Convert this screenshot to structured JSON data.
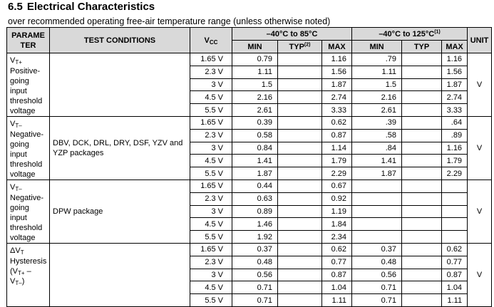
{
  "section": {
    "number": "6.5",
    "title": "Electrical Characteristics"
  },
  "subtitle": "over recommended operating free-air temperature range (unless otherwise noted)",
  "headers": {
    "parameter": "PARAMETER",
    "parameter_line1": "PARAME",
    "parameter_line2": "TER",
    "test_conditions": "TEST CONDITIONS",
    "vcc": "V",
    "vcc_sub": "CC",
    "range1": "–40°C to 85°C",
    "range2": "–40°C to 125°C",
    "range2_note": "(1)",
    "unit": "UNIT",
    "min": "MIN",
    "typ": "TYP",
    "typ_note": "(2)",
    "max": "MAX"
  },
  "groups": [
    {
      "symbol": "V",
      "symbol_sub": "T+",
      "description_lines": [
        "Positive-",
        "going",
        "input",
        "threshold",
        "voltage"
      ],
      "condition": "",
      "unit": "V",
      "rows": [
        {
          "vcc": "1.65 V",
          "min85": "0.79",
          "typ85": "",
          "max85": "1.16",
          "min125": ".79",
          "typ125": "",
          "max125": "1.16"
        },
        {
          "vcc": "2.3 V",
          "min85": "1.11",
          "typ85": "",
          "max85": "1.56",
          "min125": "1.11",
          "typ125": "",
          "max125": "1.56"
        },
        {
          "vcc": "3 V",
          "min85": "1.5",
          "typ85": "",
          "max85": "1.87",
          "min125": "1.5",
          "typ125": "",
          "max125": "1.87"
        },
        {
          "vcc": "4.5 V",
          "min85": "2.16",
          "typ85": "",
          "max85": "2.74",
          "min125": "2.16",
          "typ125": "",
          "max125": "2.74"
        },
        {
          "vcc": "5.5 V",
          "min85": "2.61",
          "typ85": "",
          "max85": "3.33",
          "min125": "2.61",
          "typ125": "",
          "max125": "3.33"
        }
      ]
    },
    {
      "symbol": "V",
      "symbol_sub": "T–",
      "description_lines": [
        "Negative-",
        "going",
        "input",
        "threshold",
        "voltage"
      ],
      "condition": "DBV, DCK, DRL, DRY, DSF, YZV and YZP packages",
      "unit": "V",
      "rows": [
        {
          "vcc": "1.65 V",
          "min85": "0.39",
          "typ85": "",
          "max85": "0.62",
          "min125": ".39",
          "typ125": "",
          "max125": ".64"
        },
        {
          "vcc": "2.3 V",
          "min85": "0.58",
          "typ85": "",
          "max85": "0.87",
          "min125": ".58",
          "typ125": "",
          "max125": ".89"
        },
        {
          "vcc": "3 V",
          "min85": "0.84",
          "typ85": "",
          "max85": "1.14",
          "min125": ".84",
          "typ125": "",
          "max125": "1.16"
        },
        {
          "vcc": "4.5 V",
          "min85": "1.41",
          "typ85": "",
          "max85": "1.79",
          "min125": "1.41",
          "typ125": "",
          "max125": "1.79"
        },
        {
          "vcc": "5.5 V",
          "min85": "1.87",
          "typ85": "",
          "max85": "2.29",
          "min125": "1.87",
          "typ125": "",
          "max125": "2.29"
        }
      ]
    },
    {
      "symbol": "V",
      "symbol_sub": "T–",
      "description_lines": [
        "Negative-",
        "going",
        "input",
        "threshold",
        "voltage"
      ],
      "condition": "DPW package",
      "unit": "V",
      "rows": [
        {
          "vcc": "1.65 V",
          "min85": "0.44",
          "typ85": "",
          "max85": "0.67",
          "min125": "",
          "typ125": "",
          "max125": ""
        },
        {
          "vcc": "2.3 V",
          "min85": "0.63",
          "typ85": "",
          "max85": "0.92",
          "min125": "",
          "typ125": "",
          "max125": ""
        },
        {
          "vcc": "3 V",
          "min85": "0.89",
          "typ85": "",
          "max85": "1.19",
          "min125": "",
          "typ125": "",
          "max125": ""
        },
        {
          "vcc": "4.5 V",
          "min85": "1.46",
          "typ85": "",
          "max85": "1.84",
          "min125": "",
          "typ125": "",
          "max125": ""
        },
        {
          "vcc": "5.5 V",
          "min85": "1.92",
          "typ85": "",
          "max85": "2.34",
          "min125": "",
          "typ125": "",
          "max125": ""
        }
      ]
    },
    {
      "symbol": "ΔV",
      "symbol_sub": "T",
      "description_lines": [
        "Hysteresis",
        "(V_T+ –",
        "V_T–)"
      ],
      "condition": "",
      "unit": "V",
      "rows": [
        {
          "vcc": "1.65 V",
          "min85": "0.37",
          "typ85": "",
          "max85": "0.62",
          "min125": "0.37",
          "typ125": "",
          "max125": "0.62"
        },
        {
          "vcc": "2.3 V",
          "min85": "0.48",
          "typ85": "",
          "max85": "0.77",
          "min125": "0.48",
          "typ125": "",
          "max125": "0.77"
        },
        {
          "vcc": "3 V",
          "min85": "0.56",
          "typ85": "",
          "max85": "0.87",
          "min125": "0.56",
          "typ125": "",
          "max125": "0.87"
        },
        {
          "vcc": "4.5 V",
          "min85": "0.71",
          "typ85": "",
          "max85": "1.04",
          "min125": "0.71",
          "typ125": "",
          "max125": "1.04"
        },
        {
          "vcc": "5.5 V",
          "min85": "0.71",
          "typ85": "",
          "max85": "1.11",
          "min125": "0.71",
          "typ125": "",
          "max125": "1.11"
        }
      ]
    }
  ]
}
